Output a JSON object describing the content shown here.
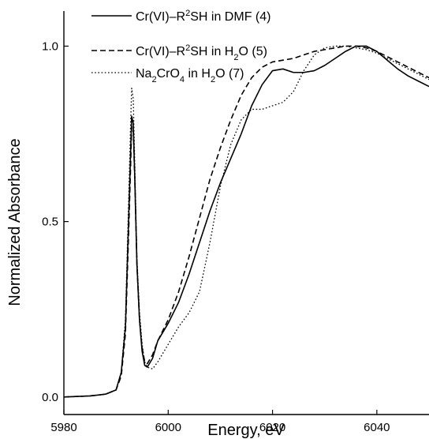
{
  "chart_data": {
    "type": "line",
    "xlabel": "Energy, eV",
    "ylabel": "Normalized Absorbance",
    "xlim": [
      5980,
      6050
    ],
    "ylim": [
      -0.05,
      1.1
    ],
    "x_ticks": [
      5980,
      6000,
      6020,
      6040
    ],
    "x_tick_labels": [
      "5980",
      "6000",
      "6020",
      "6040"
    ],
    "y_ticks": [
      0.0,
      0.5,
      1.0
    ],
    "y_tick_labels": [
      "0.0",
      "0.5",
      "1.0"
    ],
    "grid": false,
    "legend_position": "top-left",
    "series": [
      {
        "name": "Cr(VI)–R²SH in DMF (4)",
        "legend_parts": [
          {
            "t": "Cr(VI)–R",
            "s": "n"
          },
          {
            "t": "2",
            "s": "sup"
          },
          {
            "t": "SH in DMF (4)",
            "s": "n"
          }
        ],
        "style": "solid",
        "color": "#000000",
        "x": [
          5980,
          5985,
          5988,
          5990,
          5991,
          5991.8,
          5992.4,
          5992.8,
          5993,
          5993.3,
          5993.6,
          5994,
          5994.5,
          5995,
          5995.5,
          5996,
          5997,
          5998,
          6000,
          6002,
          6004,
          6006,
          6008,
          6010,
          6012,
          6014,
          6016,
          6018,
          6020,
          6022,
          6024,
          6026,
          6028,
          6030,
          6032,
          6034,
          6036,
          6038,
          6040,
          6042,
          6044,
          6046,
          6048,
          6050
        ],
        "y": [
          0.0,
          0.003,
          0.008,
          0.02,
          0.07,
          0.2,
          0.5,
          0.7,
          0.8,
          0.78,
          0.62,
          0.38,
          0.22,
          0.13,
          0.09,
          0.085,
          0.11,
          0.16,
          0.21,
          0.27,
          0.35,
          0.44,
          0.53,
          0.61,
          0.68,
          0.75,
          0.83,
          0.89,
          0.93,
          0.935,
          0.925,
          0.925,
          0.93,
          0.945,
          0.965,
          0.985,
          1.0,
          1.0,
          0.985,
          0.96,
          0.935,
          0.915,
          0.9,
          0.885
        ]
      },
      {
        "name": "Cr(VI)–R²SH in H₂O (5)",
        "legend_parts": [
          {
            "t": "Cr(VI)–R",
            "s": "n"
          },
          {
            "t": "2",
            "s": "sup"
          },
          {
            "t": "SH in H",
            "s": "n"
          },
          {
            "t": "2",
            "s": "sub"
          },
          {
            "t": "O (5)",
            "s": "n"
          }
        ],
        "style": "dashed",
        "color": "#000000",
        "x": [
          5980,
          5985,
          5988,
          5990,
          5991,
          5991.8,
          5992.4,
          5992.8,
          5993,
          5993.3,
          5993.6,
          5994,
          5994.5,
          5995,
          5995.5,
          5996,
          5997,
          5998,
          6000,
          6002,
          6004,
          6006,
          6008,
          6010,
          6012,
          6014,
          6016,
          6018,
          6020,
          6022,
          6024,
          6026,
          6028,
          6030,
          6032,
          6034,
          6036,
          6038,
          6040,
          6042,
          6044,
          6046,
          6048,
          6050
        ],
        "y": [
          0.0,
          0.003,
          0.008,
          0.02,
          0.06,
          0.18,
          0.46,
          0.66,
          0.77,
          0.76,
          0.62,
          0.38,
          0.22,
          0.14,
          0.1,
          0.095,
          0.12,
          0.16,
          0.22,
          0.3,
          0.4,
          0.51,
          0.62,
          0.71,
          0.79,
          0.86,
          0.91,
          0.94,
          0.955,
          0.96,
          0.965,
          0.975,
          0.985,
          0.99,
          0.995,
          1.0,
          1.0,
          0.995,
          0.985,
          0.97,
          0.955,
          0.94,
          0.925,
          0.91
        ]
      },
      {
        "name": "Na₂CrO₄ in H₂O (7)",
        "legend_parts": [
          {
            "t": "Na",
            "s": "n"
          },
          {
            "t": "2",
            "s": "sub"
          },
          {
            "t": "CrO",
            "s": "n"
          },
          {
            "t": "4",
            "s": "sub"
          },
          {
            "t": " in H",
            "s": "n"
          },
          {
            "t": "2",
            "s": "sub"
          },
          {
            "t": "O (7)",
            "s": "n"
          }
        ],
        "style": "dotted",
        "color": "#000000",
        "x": [
          5980,
          5985,
          5988,
          5990,
          5991,
          5991.8,
          5992.4,
          5992.8,
          5993,
          5993.3,
          5993.6,
          5994,
          5994.5,
          5995,
          5995.5,
          5996,
          5997,
          5998,
          6000,
          6002,
          6004,
          6006,
          6008,
          6010,
          6012,
          6014,
          6016,
          6018,
          6020,
          6022,
          6024,
          6026,
          6028,
          6030,
          6032,
          6034,
          6036,
          6038,
          6040,
          6042,
          6044,
          6046,
          6048,
          6050
        ],
        "y": [
          0.0,
          0.003,
          0.008,
          0.02,
          0.07,
          0.22,
          0.55,
          0.78,
          0.88,
          0.85,
          0.66,
          0.4,
          0.24,
          0.15,
          0.1,
          0.085,
          0.08,
          0.1,
          0.15,
          0.2,
          0.24,
          0.3,
          0.44,
          0.6,
          0.72,
          0.79,
          0.82,
          0.82,
          0.83,
          0.84,
          0.87,
          0.93,
          0.975,
          0.995,
          1.0,
          1.0,
          0.995,
          0.99,
          0.98,
          0.965,
          0.95,
          0.935,
          0.92,
          0.905
        ]
      }
    ]
  }
}
